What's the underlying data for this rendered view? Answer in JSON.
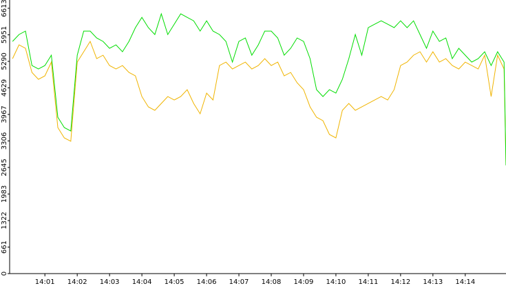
{
  "chart_data": {
    "type": "line",
    "x": [
      0,
      0.2,
      0.4,
      0.6,
      0.8,
      1.0,
      1.2,
      1.4,
      1.6,
      1.8,
      2.0,
      2.2,
      2.4,
      2.6,
      2.8,
      3.0,
      3.2,
      3.4,
      3.6,
      3.8,
      4.0,
      4.2,
      4.4,
      4.6,
      4.8,
      5.0,
      5.2,
      5.4,
      5.6,
      5.8,
      6.0,
      6.2,
      6.4,
      6.6,
      6.8,
      7.0,
      7.2,
      7.4,
      7.6,
      7.8,
      8.0,
      8.2,
      8.4,
      8.6,
      8.8,
      9.0,
      9.2,
      9.4,
      9.6,
      9.8,
      10.0,
      10.2,
      10.4,
      10.6,
      10.8,
      11.0,
      11.2,
      11.4,
      11.6,
      11.8,
      12.0,
      12.2,
      12.4,
      12.6,
      12.8,
      13.0,
      13.2,
      13.4,
      13.6,
      13.8,
      14.0,
      14.2,
      14.4,
      14.6,
      14.8,
      15.0,
      15.2,
      15.26
    ],
    "series": [
      {
        "color": "#00dd00",
        "values": [
          5786,
          5958,
          6044,
          5185,
          5099,
          5185,
          5443,
          3898,
          3640,
          3554,
          5443,
          6044,
          6044,
          5872,
          5786,
          5615,
          5700,
          5529,
          5786,
          6130,
          6387,
          6130,
          5958,
          6473,
          5958,
          6216,
          6473,
          6387,
          6301,
          6044,
          6301,
          6044,
          5958,
          5786,
          5271,
          5786,
          5872,
          5443,
          5700,
          6044,
          6044,
          5872,
          5443,
          5615,
          5872,
          5786,
          5357,
          4584,
          4413,
          4584,
          4499,
          4842,
          5357,
          5958,
          5443,
          6130,
          6216,
          6301,
          6216,
          6130,
          6301,
          6130,
          6301,
          5958,
          5615,
          6044,
          5786,
          5872,
          5357,
          5615,
          5443,
          5271,
          5357,
          5529,
          5185,
          5529,
          5271,
          2696
        ]
      },
      {
        "color": "#f0b400",
        "values": [
          5357,
          5700,
          5615,
          5014,
          4842,
          4928,
          5271,
          3640,
          3382,
          3297,
          5271,
          5529,
          5786,
          5357,
          5443,
          5185,
          5099,
          5185,
          5014,
          4928,
          4413,
          4155,
          4069,
          4241,
          4413,
          4327,
          4413,
          4584,
          4241,
          3983,
          4499,
          4327,
          5185,
          5271,
          5099,
          5185,
          5271,
          5099,
          5185,
          5357,
          5185,
          5271,
          4928,
          5014,
          4756,
          4584,
          4155,
          3898,
          3812,
          3468,
          3382,
          4069,
          4241,
          4069,
          4155,
          4241,
          4327,
          4413,
          4327,
          4584,
          5185,
          5271,
          5443,
          5529,
          5271,
          5529,
          5271,
          5357,
          5185,
          5099,
          5271,
          5185,
          5099,
          5443,
          4413,
          5443,
          5099,
          2696
        ]
      }
    ],
    "xlim": [
      -0.09,
      15.26
    ],
    "xticks": [
      {
        "value": 1,
        "label": "14:01"
      },
      {
        "value": 2,
        "label": "14:02"
      },
      {
        "value": 3,
        "label": "14:03"
      },
      {
        "value": 4,
        "label": "14:04"
      },
      {
        "value": 5,
        "label": "14:05"
      },
      {
        "value": 6,
        "label": "14:06"
      },
      {
        "value": 7,
        "label": "14:07"
      },
      {
        "value": 8,
        "label": "14:08"
      },
      {
        "value": 9,
        "label": "14:09"
      },
      {
        "value": 10,
        "label": "14:10"
      },
      {
        "value": 11,
        "label": "14:11"
      },
      {
        "value": 12,
        "label": "14:12"
      },
      {
        "value": 13,
        "label": "14:13"
      },
      {
        "value": 14,
        "label": "14:14"
      }
    ],
    "ylim": [
      0,
      6819
    ],
    "yticks": [
      0,
      661,
      1322,
      1983,
      2645,
      3306,
      3967,
      4629,
      5290,
      5951,
      6613
    ]
  }
}
